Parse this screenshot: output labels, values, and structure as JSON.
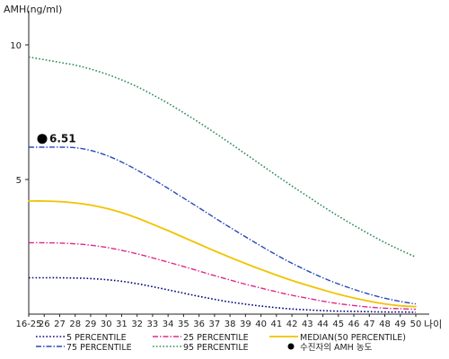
{
  "chart_data": {
    "type": "line",
    "title": "",
    "ylabel": "AMH(ng/ml)",
    "xlabel": "나이",
    "ylim": [
      0,
      11
    ],
    "y_ticks": [
      10,
      5
    ],
    "categories": [
      "16-25",
      "26",
      "27",
      "28",
      "29",
      "30",
      "31",
      "32",
      "33",
      "34",
      "35",
      "36",
      "37",
      "38",
      "39",
      "40",
      "41",
      "42",
      "43",
      "44",
      "45",
      "46",
      "47",
      "48",
      "49",
      "50"
    ],
    "series": [
      {
        "name": "5 PERCENTILE",
        "color": "#000080",
        "dash": "dotted",
        "values": [
          1.35,
          1.35,
          1.35,
          1.34,
          1.32,
          1.28,
          1.22,
          1.13,
          1.02,
          0.9,
          0.78,
          0.66,
          0.55,
          0.45,
          0.37,
          0.3,
          0.24,
          0.19,
          0.16,
          0.13,
          0.11,
          0.1,
          0.09,
          0.08,
          0.08,
          0.07
        ]
      },
      {
        "name": "25 PERCENTILE",
        "color": "#e0288c",
        "dash": "dashdot",
        "values": [
          2.65,
          2.65,
          2.64,
          2.61,
          2.56,
          2.48,
          2.37,
          2.24,
          2.09,
          1.93,
          1.77,
          1.6,
          1.43,
          1.27,
          1.11,
          0.97,
          0.83,
          0.7,
          0.59,
          0.48,
          0.39,
          0.32,
          0.26,
          0.22,
          0.2,
          0.18
        ]
      },
      {
        "name": "MEDIAN(50 PERCENTILE)",
        "color": "#f2c200",
        "dash": "solid",
        "values": [
          4.2,
          4.2,
          4.18,
          4.13,
          4.05,
          3.93,
          3.77,
          3.57,
          3.34,
          3.1,
          2.85,
          2.6,
          2.35,
          2.11,
          1.88,
          1.66,
          1.45,
          1.25,
          1.07,
          0.9,
          0.74,
          0.6,
          0.48,
          0.38,
          0.31,
          0.28
        ]
      },
      {
        "name": "75 PERCENTILE",
        "color": "#2848b8",
        "dash": "dashdot",
        "values": [
          6.2,
          6.2,
          6.2,
          6.18,
          6.08,
          5.9,
          5.65,
          5.35,
          5.02,
          4.67,
          4.31,
          3.95,
          3.58,
          3.22,
          2.87,
          2.53,
          2.2,
          1.89,
          1.61,
          1.35,
          1.12,
          0.92,
          0.74,
          0.59,
          0.47,
          0.38
        ]
      },
      {
        "name": "95 PERCENTILE",
        "color": "#2e8b57",
        "dash": "dotted",
        "values": [
          9.55,
          9.45,
          9.35,
          9.25,
          9.1,
          8.92,
          8.7,
          8.45,
          8.15,
          7.83,
          7.48,
          7.12,
          6.74,
          6.35,
          5.95,
          5.55,
          5.15,
          4.76,
          4.38,
          4.0,
          3.64,
          3.3,
          2.97,
          2.66,
          2.38,
          2.12
        ]
      }
    ],
    "annotation": {
      "category": "16-25",
      "value": 6.51,
      "label": "6.51"
    },
    "legend": {
      "placement": "bottom",
      "items": [
        {
          "label": "5 PERCENTILE",
          "color": "#000080",
          "dash": "dotted"
        },
        {
          "label": "25 PERCENTILE",
          "color": "#e0288c",
          "dash": "dashdot"
        },
        {
          "label": "MEDIAN(50 PERCENTILE)",
          "color": "#f2c200",
          "dash": "solid"
        },
        {
          "label": "75 PERCENTILE",
          "color": "#2848b8",
          "dash": "dashdot"
        },
        {
          "label": "95 PERCENTILE",
          "color": "#2e8b57",
          "dash": "dotted"
        },
        {
          "label": "수진자의 AMH 농도",
          "color": "#000000",
          "dash": "marker"
        }
      ]
    },
    "grid": false
  }
}
